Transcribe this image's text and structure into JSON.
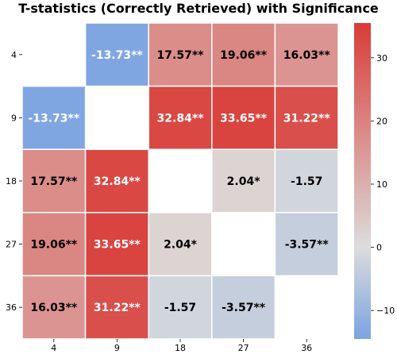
{
  "chart_data": {
    "type": "heatmap",
    "title": "T-statistics (Correctly Retrieved) with Significance",
    "row_labels": [
      "4",
      "9",
      "18",
      "27",
      "36"
    ],
    "col_labels": [
      "4",
      "9",
      "18",
      "27",
      "36"
    ],
    "values": [
      [
        null,
        -13.73,
        17.57,
        19.06,
        16.03
      ],
      [
        -13.73,
        null,
        32.84,
        33.65,
        31.22
      ],
      [
        17.57,
        32.84,
        null,
        2.04,
        -1.57
      ],
      [
        19.06,
        33.65,
        2.04,
        null,
        -3.57
      ],
      [
        16.03,
        31.22,
        -1.57,
        -3.57,
        null
      ]
    ],
    "annotations": [
      [
        null,
        "-13.73**",
        "17.57**",
        "19.06**",
        "16.03**"
      ],
      [
        "-13.73**",
        null,
        "32.84**",
        "33.65**",
        "31.22**"
      ],
      [
        "17.57**",
        "32.84**",
        null,
        "2.04*",
        "-1.57"
      ],
      [
        "19.06**",
        "33.65**",
        "2.04*",
        null,
        "-3.57**"
      ],
      [
        "16.03**",
        "31.22**",
        "-1.57",
        "-3.57**",
        null
      ]
    ],
    "colorbar": {
      "colormap": "coolwarm",
      "vmin": -14.5,
      "vmax": 35.5,
      "center": 0,
      "ticks": [
        -10,
        0,
        10,
        20,
        30
      ],
      "tick_labels": [
        "−10",
        "0",
        "10",
        "20",
        "30"
      ]
    },
    "colors": {
      "low": "#7ba3e2",
      "mid": "#dcdcdc",
      "high": "#d93c37"
    }
  }
}
